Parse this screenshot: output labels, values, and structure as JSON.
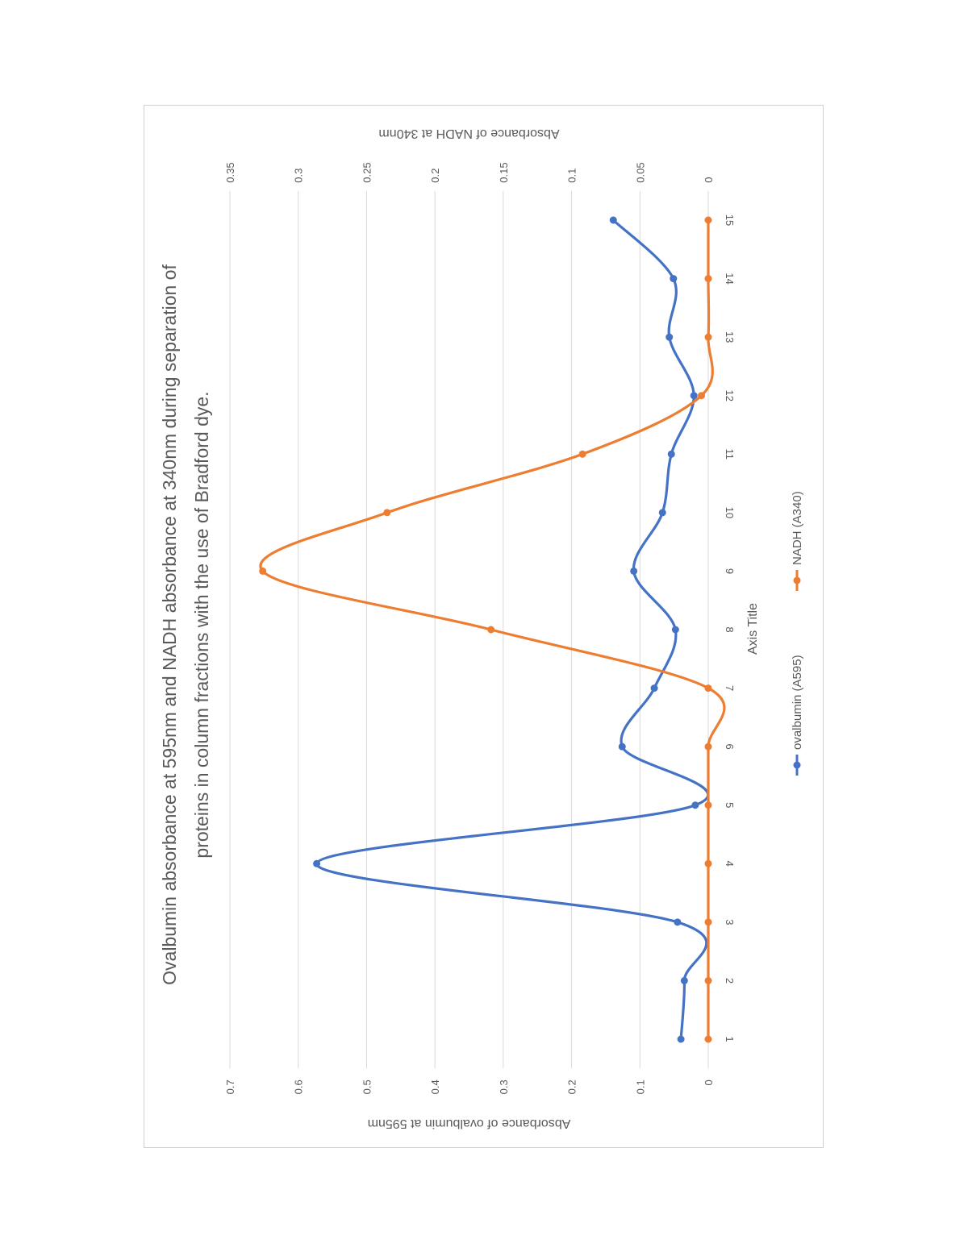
{
  "chart_data": {
    "type": "line",
    "orientation": "rotated 90 degrees counterclockwise",
    "title": "Ovalbumin absorbance at 595nm and NADH absorbance at 340nm during separation of proteins in column fractions with the use of Bradford dye.",
    "title_lines": [
      "Ovalbumin absorbance at 595nm and NADH absorbance at 340nm during separation of",
      "proteins in column fractions with the use of Bradford dye."
    ],
    "xlabel": "Axis Title",
    "ylabel": "Absorbance of ovalbumin at 595nm",
    "y2label": "Absorbance of NADH at 340nm",
    "categories": [
      "1",
      "2",
      "3",
      "4",
      "5",
      "6",
      "7",
      "8",
      "9",
      "10",
      "11",
      "12",
      "13",
      "14",
      "15"
    ],
    "ylim": [
      0,
      0.7
    ],
    "yticks": [
      "0",
      "0.1",
      "0.2",
      "0.3",
      "0.4",
      "0.5",
      "0.6",
      "0.7"
    ],
    "y2lim": [
      0,
      0.35
    ],
    "y2ticks": [
      "0",
      "0.05",
      "0.1",
      "0.15",
      "0.2",
      "0.25",
      "0.3",
      "0.35"
    ],
    "grid": true,
    "smoothed": true,
    "legend_position": "bottom",
    "series": [
      {
        "name": "ovalbumin (A595)",
        "axis": "primary",
        "color": "#4472C4",
        "values": [
          0.04,
          0.035,
          0.045,
          0.573,
          0.019,
          0.126,
          0.079,
          0.048,
          0.109,
          0.067,
          0.054,
          0.021,
          0.057,
          0.051,
          0.139
        ]
      },
      {
        "name": "NADH (A340)",
        "axis": "secondary",
        "color": "#ED7D31",
        "values": [
          0,
          0,
          0,
          0,
          0,
          0,
          0,
          0.159,
          0.326,
          0.235,
          0.092,
          0.005,
          0,
          0,
          0
        ]
      }
    ]
  }
}
